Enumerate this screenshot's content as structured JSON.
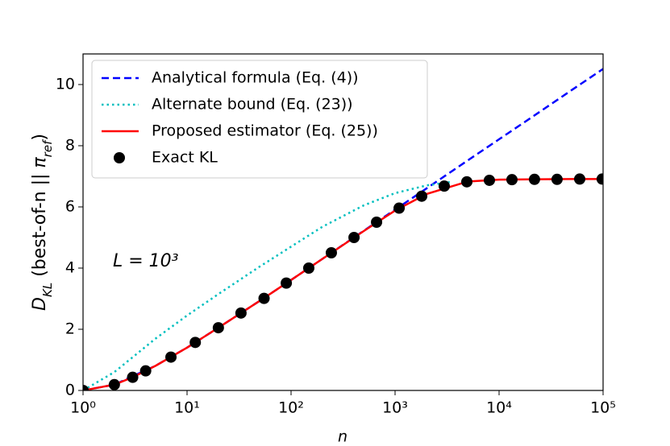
{
  "chart_data": {
    "type": "line",
    "xlabel": "n",
    "ylabel": [
      "D",
      "KL",
      " (best-of-n || ",
      "π",
      "ref",
      ")"
    ],
    "annotation": "L = 10³",
    "xscale": "log",
    "xlim": [
      1,
      100000
    ],
    "ylim": [
      0,
      11
    ],
    "xticks": [
      {
        "value": 1,
        "label": "10⁰"
      },
      {
        "value": 10,
        "label": "10¹"
      },
      {
        "value": 100,
        "label": "10²"
      },
      {
        "value": 1000,
        "label": "10³"
      },
      {
        "value": 10000,
        "label": "10⁴"
      },
      {
        "value": 100000,
        "label": "10⁵"
      }
    ],
    "yticks": [
      0,
      2,
      4,
      6,
      8,
      10
    ],
    "legend": "upper left",
    "series": [
      {
        "name": "Analytical formula (Eq. (4))",
        "color": "#0000ff",
        "linestyle": "dashed",
        "x": [
          1,
          2,
          5,
          10,
          20,
          50,
          100,
          200,
          500,
          1000,
          2000,
          5000,
          10000,
          20000,
          50000,
          100000
        ],
        "values": [
          0,
          0.19,
          0.81,
          1.4,
          2.05,
          2.93,
          3.61,
          4.3,
          5.22,
          5.91,
          6.6,
          7.52,
          8.21,
          8.9,
          9.82,
          10.51
        ]
      },
      {
        "name": "Alternate bound (Eq. (23))",
        "color": "#00bfbf",
        "linestyle": "dotted",
        "x": [
          1,
          2,
          5,
          10,
          20,
          50,
          100,
          200,
          500,
          1000,
          2000,
          3500
        ],
        "values": [
          0,
          0.6,
          1.7,
          2.45,
          3.15,
          4.05,
          4.7,
          5.35,
          6.05,
          6.45,
          6.7,
          6.82
        ]
      },
      {
        "name": "Proposed estimator (Eq. (25))",
        "color": "#ff0000",
        "linestyle": "solid",
        "x": [
          1,
          2,
          3,
          5,
          10,
          20,
          50,
          100,
          200,
          500,
          1000,
          2000,
          5000,
          10000,
          20000,
          50000,
          100000
        ],
        "values": [
          0,
          0.19,
          0.43,
          0.81,
          1.4,
          2.05,
          2.93,
          3.61,
          4.3,
          5.21,
          5.88,
          6.42,
          6.83,
          6.89,
          6.9,
          6.91,
          6.91
        ]
      },
      {
        "name": "Exact KL",
        "color": "#000000",
        "marker": "circle",
        "x": [
          1,
          2,
          3,
          4,
          7,
          12,
          20,
          33,
          55,
          90,
          148,
          244,
          403,
          664,
          1094,
          1803,
          2971,
          4897,
          8070,
          13300,
          21900,
          36100,
          59600,
          98000
        ],
        "values": [
          0,
          0.19,
          0.43,
          0.64,
          1.09,
          1.57,
          2.05,
          2.53,
          3.01,
          3.51,
          4.0,
          4.5,
          5.0,
          5.5,
          5.96,
          6.35,
          6.68,
          6.82,
          6.87,
          6.89,
          6.9,
          6.9,
          6.91,
          6.91
        ]
      }
    ]
  }
}
